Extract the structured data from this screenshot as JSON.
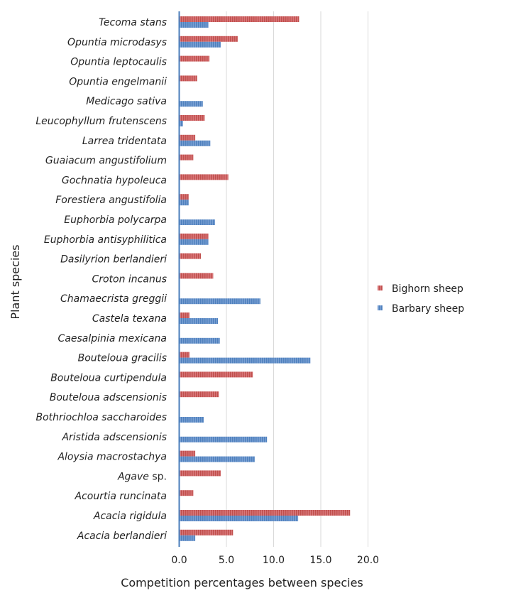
{
  "chart_data": {
    "type": "bar",
    "orientation": "horizontal",
    "xlabel": "Competition percentages between species",
    "ylabel": "Plant species",
    "xlim": [
      0,
      20
    ],
    "xticks": [
      "0.0",
      "5.0",
      "10.0",
      "15.0",
      "20.0"
    ],
    "grid": true,
    "legend_position": "right",
    "categories": [
      "Tecoma stans",
      "Opuntia microdasys",
      "Opuntia leptocaulis",
      "Opuntia engelmanii",
      "Medicago sativa",
      "Leucophyllum frutenscens",
      "Larrea tridentata",
      "Guaiacum angustifolium",
      "Gochnatia hypoleuca",
      "Forestiera angustifolia",
      "Euphorbia polycarpa",
      "Euphorbia antisyphilitica",
      "Dasilyrion berlandieri",
      "Croton incanus",
      "Chamaecrista greggii",
      "Castela texana",
      "Caesalpinia mexicana",
      "Bouteloua gracilis",
      "Bouteloua curtipendula",
      "Bouteloua adscensionis",
      "Bothriochloa saccharoides",
      "Aristida adscensionis",
      "Aloysia macrostachya",
      "Agave sp.",
      "Acourtia runcinata",
      "Acacia rigidula",
      "Acacia berlandieri"
    ],
    "series": [
      {
        "name": "Bighorn sheep",
        "color": "#c0504d",
        "values": [
          12.7,
          6.2,
          3.2,
          1.9,
          0,
          2.7,
          1.7,
          1.5,
          5.2,
          1.0,
          0,
          3.1,
          2.3,
          3.6,
          0,
          1.1,
          0,
          1.1,
          7.8,
          4.2,
          0,
          0,
          1.7,
          4.4,
          1.5,
          18.1,
          5.7
        ]
      },
      {
        "name": "Barbary sheep",
        "color": "#4f81bd",
        "values": [
          3.1,
          4.4,
          0,
          0,
          2.5,
          0.4,
          3.3,
          0,
          0,
          1.0,
          3.8,
          3.1,
          0,
          0,
          8.6,
          4.1,
          4.3,
          13.9,
          0,
          0,
          2.6,
          9.3,
          8.0,
          0,
          0,
          12.6,
          1.7
        ]
      }
    ]
  }
}
